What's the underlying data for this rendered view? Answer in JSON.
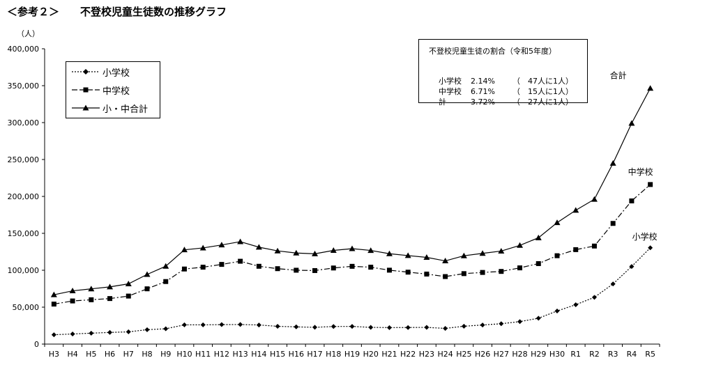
{
  "page_title": "＜参考２＞　　不登校児童生徒数の推移グラフ",
  "ratio_box": {
    "title": "不登校児童生徒の割合（令和5年度）",
    "rows": [
      {
        "label": "小学校",
        "percent": "2.14%",
        "ratio": "（　47人に1人）"
      },
      {
        "label": "中学校",
        "percent": "6.71%",
        "ratio": "（　15人に1人）"
      },
      {
        "label": "計",
        "percent": "3.72%",
        "ratio": "（　27人に1人）"
      }
    ]
  },
  "chart_data": {
    "type": "line",
    "ylabel": "（人）",
    "ylim": [
      0,
      400000
    ],
    "yticks": [
      "0",
      "50,000",
      "100,000",
      "150,000",
      "200,000",
      "250,000",
      "300,000",
      "350,000",
      "400,000"
    ],
    "ytick_values": [
      0,
      50000,
      100000,
      150000,
      200000,
      250000,
      300000,
      350000,
      400000
    ],
    "grid": false,
    "legend_position": "top-left",
    "categories": [
      "H3",
      "H4",
      "H5",
      "H6",
      "H7",
      "H8",
      "H9",
      "H10",
      "H11",
      "H12",
      "H13",
      "H14",
      "H15",
      "H16",
      "H17",
      "H18",
      "H19",
      "H20",
      "H21",
      "H22",
      "H23",
      "H24",
      "H25",
      "H26",
      "H27",
      "H28",
      "H29",
      "H30",
      "R1",
      "R2",
      "R3",
      "R4",
      "R5"
    ],
    "series": [
      {
        "name": "小学校",
        "end_label": "小学校",
        "marker": "diamond",
        "dash": "dot",
        "values": [
          12645,
          13710,
          14769,
          15786,
          16569,
          19498,
          20765,
          26017,
          26047,
          26373,
          26511,
          25869,
          24077,
          23318,
          22709,
          23825,
          23927,
          22652,
          22327,
          22463,
          22622,
          21243,
          24175,
          25864,
          27583,
          30448,
          35032,
          44841,
          53350,
          63350,
          81498,
          105112,
          130370
        ]
      },
      {
        "name": "中学校",
        "end_label": "中学校",
        "marker": "square",
        "dash": "dashdot",
        "values": [
          54172,
          58421,
          60039,
          61663,
          65022,
          74853,
          84701,
          101675,
          104180,
          107913,
          112211,
          105383,
          102149,
          100040,
          99578,
          103069,
          105328,
          104153,
          100105,
          97428,
          94836,
          91446,
          95442,
          97033,
          98408,
          103235,
          108999,
          119687,
          127922,
          132777,
          163442,
          193936,
          216112
        ]
      },
      {
        "name": "小・中合計",
        "end_label": "合計",
        "marker": "triangle",
        "dash": "solid",
        "values": [
          66817,
          72131,
          74808,
          77449,
          81591,
          94351,
          105466,
          127692,
          130227,
          134286,
          138722,
          131252,
          126226,
          123358,
          122287,
          126894,
          129255,
          126805,
          122432,
          119891,
          117458,
          112689,
          119617,
          122897,
          125991,
          133683,
          144031,
          164528,
          181272,
          196127,
          244940,
          299048,
          346482
        ]
      }
    ]
  }
}
